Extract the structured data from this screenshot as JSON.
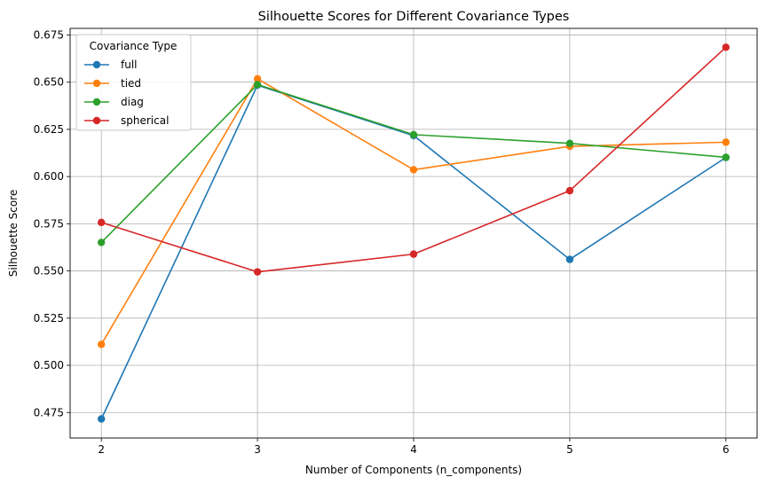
{
  "chart_data": {
    "type": "line",
    "title": "Silhouette Scores for Different Covariance Types",
    "xlabel": "Number of Components (n_components)",
    "ylabel": "Silhouette Score",
    "x": [
      2,
      3,
      4,
      5,
      6
    ],
    "xticks": [
      "2",
      "3",
      "4",
      "5",
      "6"
    ],
    "xlim": [
      1.8,
      6.2
    ],
    "yticks": [
      "0.475",
      "0.500",
      "0.525",
      "0.550",
      "0.575",
      "0.600",
      "0.625",
      "0.650",
      "0.675"
    ],
    "ytick_values": [
      0.475,
      0.5,
      0.525,
      0.55,
      0.575,
      0.6,
      0.625,
      0.65,
      0.675
    ],
    "ylim": [
      0.4615,
      0.6785
    ],
    "grid": true,
    "marker": "circle",
    "legend": {
      "title": "Covariance Type",
      "placement": "top-left"
    },
    "series": [
      {
        "name": "full",
        "color": "#1f77b4",
        "values": [
          0.4716,
          0.6484,
          0.6217,
          0.5561,
          0.6101
        ]
      },
      {
        "name": "tied",
        "color": "#ff7f0e",
        "values": [
          0.5111,
          0.6518,
          0.6036,
          0.616,
          0.6182
        ]
      },
      {
        "name": "diag",
        "color": "#2ca02c",
        "values": [
          0.5651,
          0.6487,
          0.6222,
          0.6176,
          0.6102
        ]
      },
      {
        "name": "spherical",
        "color": "#d62728",
        "values": [
          0.5757,
          0.5495,
          0.5589,
          0.5925,
          0.6685
        ]
      }
    ]
  }
}
